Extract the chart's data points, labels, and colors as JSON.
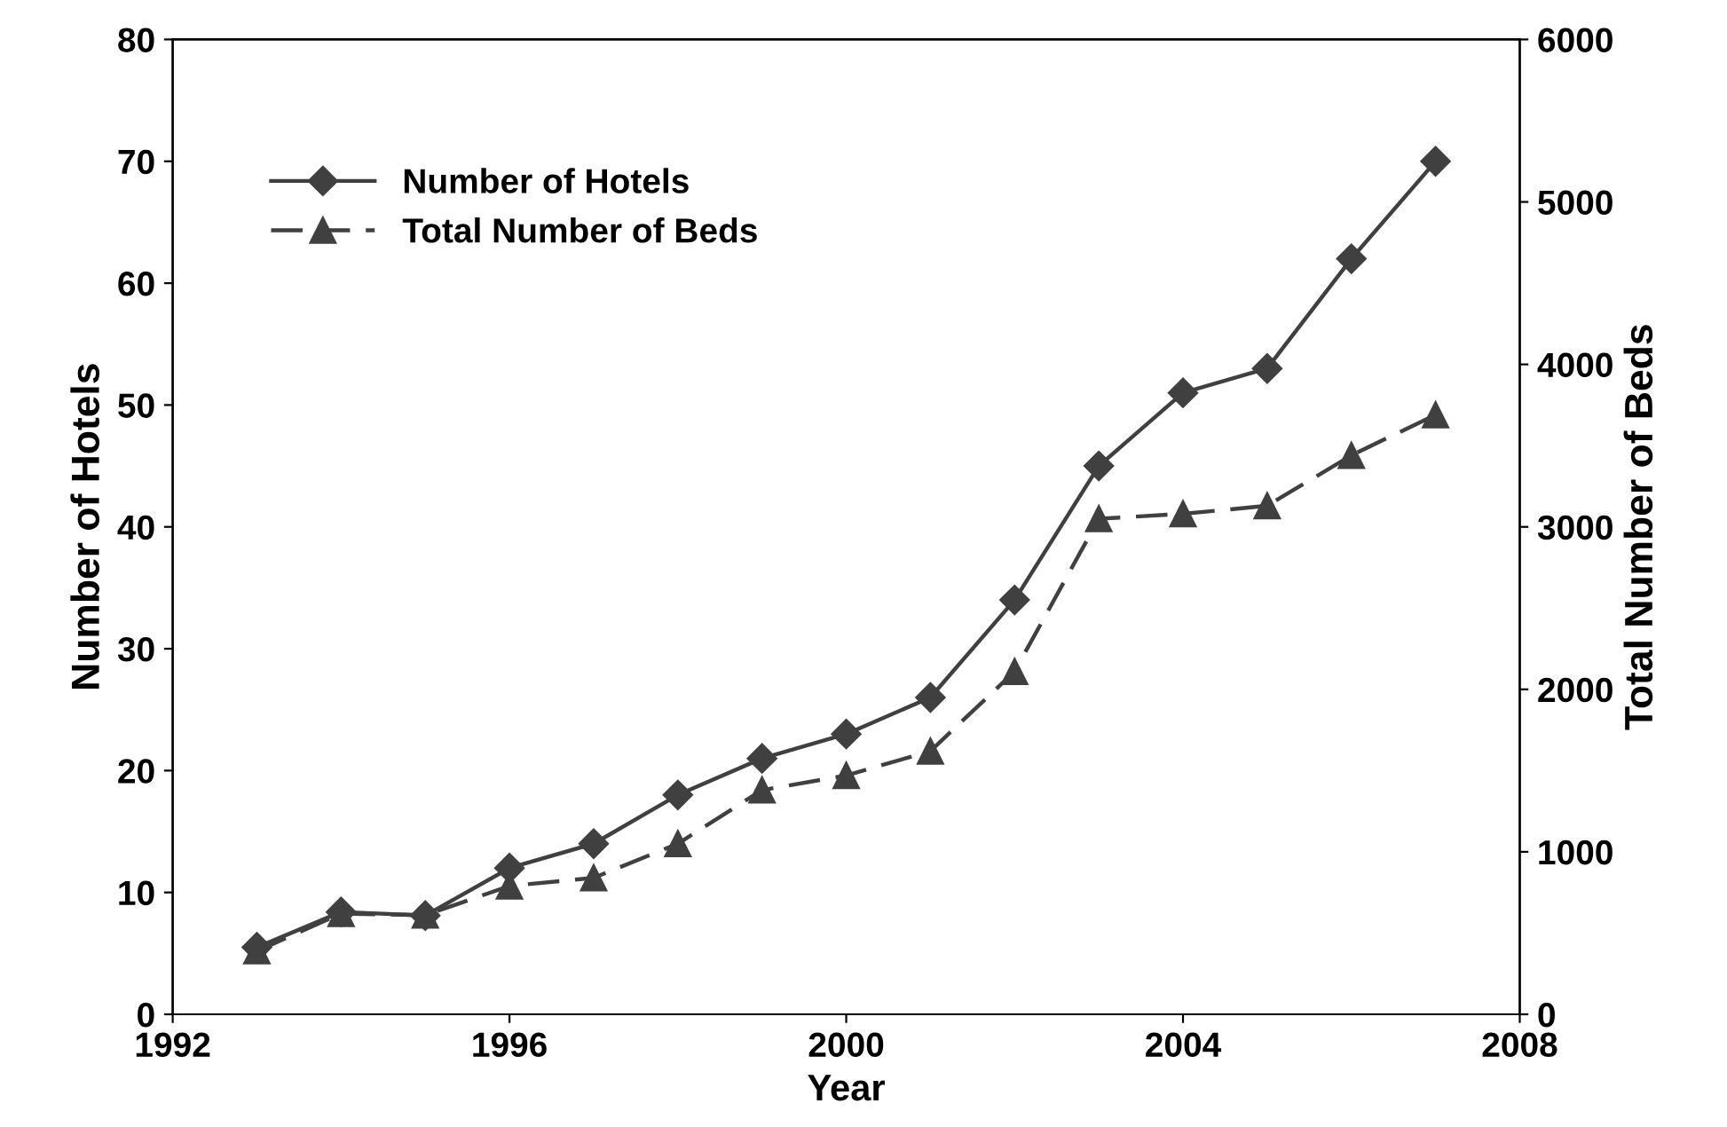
{
  "chart_data": {
    "type": "line",
    "xlabel": "Year",
    "ylabel": "Number of Hotels",
    "y2label": "Total Number of Beds",
    "x": [
      1993,
      1994,
      1995,
      1996,
      1997,
      1998,
      1999,
      2000,
      2001,
      2002,
      2003,
      2004,
      2005,
      2006,
      2007
    ],
    "series": [
      {
        "name": "Number of Hotels",
        "color": "#404040",
        "marker": "diamond",
        "line_style": "solid",
        "values": [
          5.5,
          8.4,
          8.1,
          12,
          14,
          18,
          21,
          23,
          26,
          34,
          45,
          51,
          53,
          62,
          70
        ]
      },
      {
        "name": "Total Number of Beds",
        "color": "#404040",
        "marker": "triangle",
        "line_style": "dashed",
        "axis": "y2",
        "values": [
          390,
          620,
          610,
          790,
          840,
          1050,
          1380,
          1470,
          1620,
          2110,
          3050,
          3080,
          3130,
          3440,
          3690
        ]
      }
    ],
    "xlim": [
      1992,
      2008
    ],
    "xticks": [
      1992,
      1996,
      2000,
      2004,
      2008
    ],
    "ylim": [
      0,
      80
    ],
    "yticks": [
      0,
      10,
      20,
      30,
      40,
      50,
      60,
      70,
      80
    ],
    "y2lim": [
      0,
      6000
    ],
    "y2ticks": [
      0,
      1000,
      2000,
      3000,
      4000,
      5000,
      6000
    ],
    "legend": "top left",
    "grid": false
  }
}
